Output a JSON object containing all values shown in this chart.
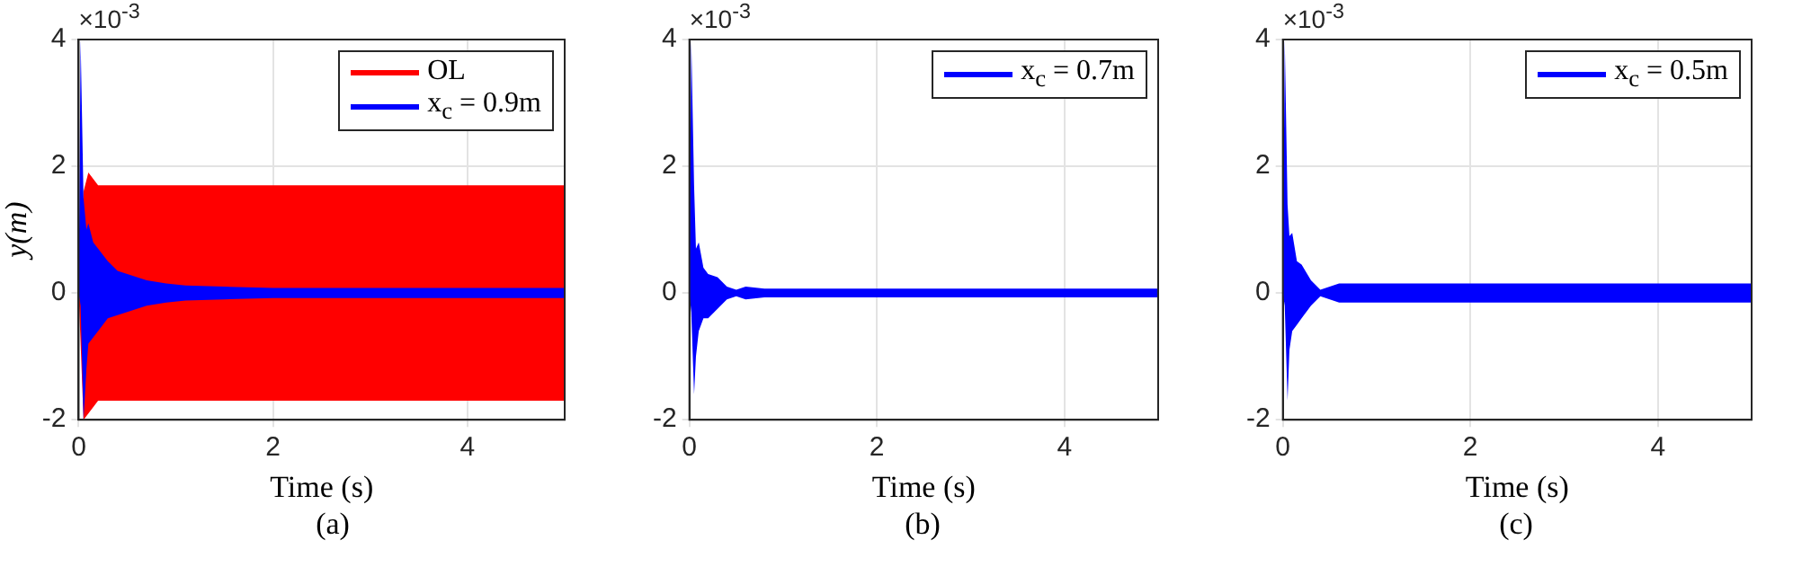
{
  "chart_data": [
    {
      "type": "line",
      "xlabel": "Time (s)",
      "ylabel": "y(m)",
      "xlim": [
        0,
        5
      ],
      "xticks": [
        0,
        2,
        4
      ],
      "ylim": [
        -2,
        4
      ],
      "yticks": [
        -2,
        0,
        2,
        4
      ],
      "grid": true,
      "legend": "top right",
      "annotations": [
        "×10$^{-3}$",
        "(a)"
      ],
      "series": [
        {
          "name": "OL",
          "color": "#ff0000",
          "x": [
            0,
            0.05,
            0.1,
            0.2,
            0.5,
            1,
            2,
            3,
            4,
            5
          ],
          "values": [
            null,
            null,
            null,
            null,
            null,
            null,
            null,
            null,
            null,
            null
          ],
          "upper": [
            0,
            1.6,
            1.9,
            1.7,
            1.7,
            1.7,
            1.7,
            1.7,
            1.7,
            1.7
          ],
          "lower": [
            0,
            -2,
            -1.9,
            -1.7,
            -1.7,
            -1.7,
            -1.7,
            -1.7,
            -1.7,
            -1.7
          ]
        },
        {
          "name": "x$_{c}$ = 0.9m",
          "color": "#0000ff",
          "x": [
            0,
            0.02,
            0.05,
            0.08,
            0.1,
            0.15,
            0.2,
            0.3,
            0.4,
            0.5,
            0.7,
            0.9,
            1.1,
            1.5,
            2,
            3,
            4,
            5
          ],
          "values": [
            0,
            0,
            0,
            0,
            0,
            0,
            0,
            0,
            0,
            0,
            0,
            0,
            0,
            0,
            0,
            0,
            0,
            0
          ],
          "upper": [
            0,
            4,
            1.5,
            1,
            1.1,
            0.8,
            0.7,
            0.5,
            0.35,
            0.3,
            0.2,
            0.15,
            0.12,
            0.1,
            0.08,
            0.08,
            0.08,
            0.08
          ],
          "lower": [
            0,
            -0.2,
            -2,
            -1.2,
            -0.8,
            -0.7,
            -0.6,
            -0.4,
            -0.35,
            -0.3,
            -0.2,
            -0.15,
            -0.12,
            -0.1,
            -0.08,
            -0.08,
            -0.08,
            -0.08
          ]
        }
      ]
    },
    {
      "type": "line",
      "xlabel": "Time (s)",
      "xlim": [
        0,
        5
      ],
      "xticks": [
        0,
        2,
        4
      ],
      "ylim": [
        -2,
        4
      ],
      "yticks": [
        -2,
        0,
        2,
        4
      ],
      "grid": true,
      "legend": "top right",
      "annotations": [
        "×10$^{-3}$",
        "(b)"
      ],
      "series": [
        {
          "name": "x$_{c}$ = 0.7m",
          "color": "#0000ff",
          "x": [
            0,
            0.02,
            0.05,
            0.07,
            0.1,
            0.15,
            0.2,
            0.3,
            0.4,
            0.5,
            0.6,
            0.8,
            1,
            2,
            3,
            4,
            5
          ],
          "values": [
            0,
            0,
            0,
            0,
            0,
            0,
            0,
            0,
            0,
            0,
            0,
            0,
            0,
            0,
            0,
            0,
            0
          ],
          "upper": [
            0,
            4,
            1.7,
            0.7,
            0.8,
            0.4,
            0.3,
            0.25,
            0.1,
            0.05,
            0.1,
            0.07,
            0.07,
            0.07,
            0.07,
            0.07,
            0.07
          ],
          "lower": [
            0,
            -0.3,
            -1.6,
            -1,
            -0.6,
            -0.4,
            -0.4,
            -0.25,
            -0.1,
            -0.05,
            -0.1,
            -0.07,
            -0.07,
            -0.07,
            -0.07,
            -0.07,
            -0.07
          ]
        }
      ]
    },
    {
      "type": "line",
      "xlabel": "Time (s)",
      "xlim": [
        0,
        5
      ],
      "xticks": [
        0,
        2,
        4
      ],
      "ylim": [
        -2,
        4
      ],
      "yticks": [
        -2,
        0,
        2,
        4
      ],
      "grid": true,
      "legend": "top right",
      "annotations": [
        "×10$^{-3}$",
        "(c)"
      ],
      "series": [
        {
          "name": "x$_{c}$ = 0.5m",
          "color": "#0000ff",
          "x": [
            0,
            0.02,
            0.05,
            0.07,
            0.1,
            0.15,
            0.2,
            0.3,
            0.4,
            0.5,
            0.6,
            0.8,
            1,
            2,
            3,
            4,
            5
          ],
          "values": [
            0,
            0,
            0,
            0,
            0,
            0,
            0,
            0,
            0,
            0,
            0,
            0,
            0,
            0,
            0,
            0,
            0
          ],
          "upper": [
            0,
            4,
            1.4,
            0.9,
            0.95,
            0.5,
            0.45,
            0.2,
            0.05,
            0.1,
            0.15,
            0.15,
            0.15,
            0.15,
            0.15,
            0.15,
            0.15
          ],
          "lower": [
            0,
            -0.2,
            -1.7,
            -0.9,
            -0.6,
            -0.5,
            -0.4,
            -0.2,
            -0.05,
            -0.1,
            -0.15,
            -0.15,
            -0.15,
            -0.15,
            -0.15,
            -0.15,
            -0.15
          ]
        }
      ]
    }
  ]
}
